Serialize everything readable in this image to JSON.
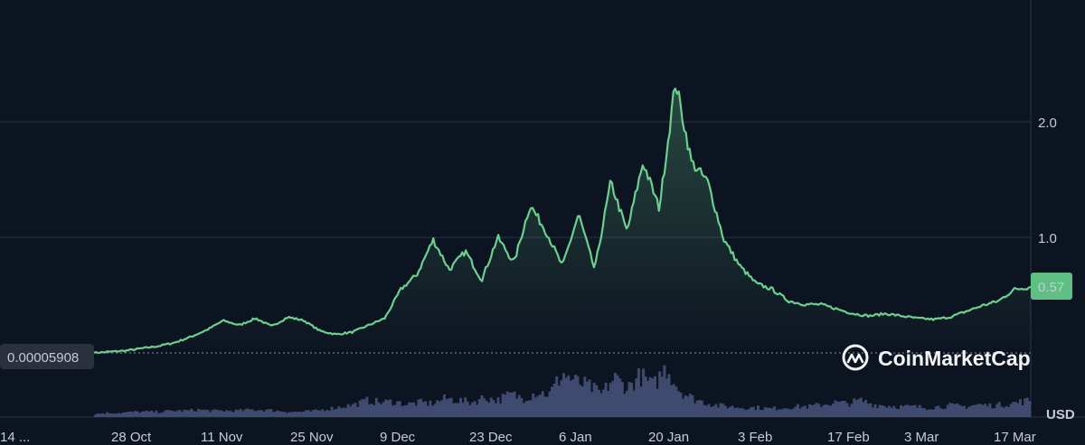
{
  "chart_data": {
    "type": "area",
    "currency_label": "USD",
    "current_price_label": "0.57",
    "baseline_label": "0.00005908",
    "watermark": "CoinMarketCap",
    "x_ticks": [
      "14 ...",
      "28 Oct",
      "11 Nov",
      "25 Nov",
      "9 Dec",
      "23 Dec",
      "6 Jan",
      "20 Jan",
      "3 Feb",
      "17 Feb",
      "3 Mar",
      "17 Mar"
    ],
    "y_ticks": [
      {
        "label": "1.0",
        "value": 1.0
      },
      {
        "label": "2.0",
        "value": 2.0
      }
    ],
    "ylim": [
      0.0,
      2.45
    ],
    "grid": "horizontal",
    "colors": {
      "line": "#6ccf8e",
      "price_badge": "#5fc084",
      "volume": "#3e4a6e",
      "background": "#0d1421",
      "grid": "#2b3444"
    },
    "series": [
      {
        "values": [
          0.0,
          0.01,
          0.02,
          0.04,
          0.06,
          0.09,
          0.14,
          0.2,
          0.28,
          0.24,
          0.3,
          0.23,
          0.31,
          0.28,
          0.19,
          0.16,
          0.18,
          0.24,
          0.3,
          0.55,
          0.68,
          0.98,
          0.72,
          0.88,
          0.63,
          1.0,
          0.78,
          1.28,
          1.05,
          0.75,
          1.2,
          0.72,
          1.48,
          1.05,
          1.65,
          1.25,
          2.35,
          1.65,
          1.48,
          0.98,
          0.75,
          0.6,
          0.55,
          0.45,
          0.42,
          0.42,
          0.38,
          0.34,
          0.32,
          0.34,
          0.32,
          0.3,
          0.29,
          0.31,
          0.36,
          0.41,
          0.45,
          0.55,
          0.57
        ]
      }
    ],
    "volume": [
      3,
      4,
      4,
      5,
      5,
      5,
      6,
      6,
      7,
      6,
      6,
      6,
      7,
      7,
      6,
      5,
      5,
      6,
      8,
      10,
      12,
      16,
      14,
      15,
      12,
      14,
      13,
      18,
      16,
      14,
      19,
      16,
      22,
      18,
      24,
      22,
      42,
      34,
      30,
      22,
      38,
      28,
      40,
      30,
      48,
      26,
      18,
      14,
      11,
      10,
      9,
      9,
      8,
      9,
      10,
      10,
      12,
      14,
      13,
      16,
      12,
      11,
      10,
      10,
      9,
      10,
      11,
      10,
      12,
      11,
      12,
      14,
      16
    ]
  }
}
